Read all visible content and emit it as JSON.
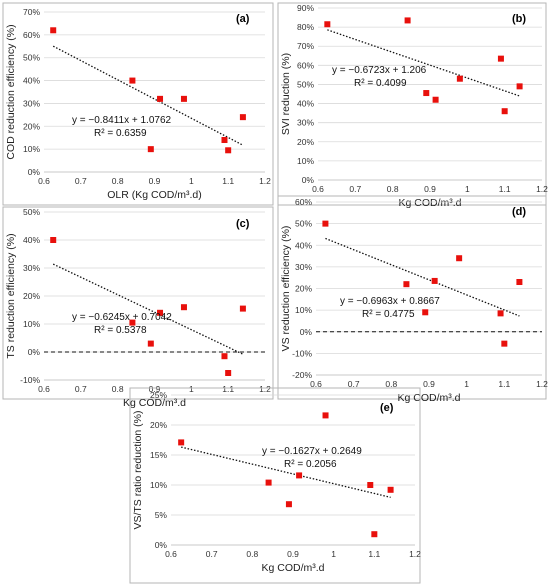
{
  "colors": {
    "marker": "#e8100c",
    "trendline": "#111111",
    "grid": "#d9d9d9",
    "frame": "#b5b5b5"
  },
  "chart_data": [
    {
      "panel": "(a)",
      "type": "scatter",
      "xlabel": "OLR (Kg COD/m³.d)",
      "ylabel": "COD reduction efficiency (%)",
      "xlim": [
        0.6,
        1.2
      ],
      "ylim": [
        0,
        0.7
      ],
      "x_ticks": [
        "0.6",
        "0.7",
        "0.8",
        "0.9",
        "1",
        "1.1",
        "1.2"
      ],
      "y_ticks": [
        "0%",
        "10%",
        "20%",
        "30%",
        "40%",
        "50%",
        "60%",
        "70%"
      ],
      "grid": "horizontal",
      "points": [
        {
          "x": 0.625,
          "y": 0.62
        },
        {
          "x": 0.84,
          "y": 0.4
        },
        {
          "x": 0.89,
          "y": 0.1
        },
        {
          "x": 0.915,
          "y": 0.32
        },
        {
          "x": 0.98,
          "y": 0.32
        },
        {
          "x": 1.09,
          "y": 0.14
        },
        {
          "x": 1.1,
          "y": 0.095
        },
        {
          "x": 1.14,
          "y": 0.24
        }
      ],
      "trend": {
        "slope": -0.8411,
        "intercept": 1.0762
      },
      "equation": "y = −0.8411x + 1.0762",
      "r2": "R² = 0.6359",
      "zero_line": false
    },
    {
      "panel": "(b)",
      "type": "scatter",
      "xlabel": "Kg COD/m³.d",
      "ylabel": "SVI reduction (%)",
      "xlim": [
        0.6,
        1.2
      ],
      "ylim": [
        0,
        0.9
      ],
      "x_ticks": [
        "0.6",
        "0.7",
        "0.8",
        "0.9",
        "1",
        "1.1",
        "1.2"
      ],
      "y_ticks": [
        "0%",
        "10%",
        "20%",
        "30%",
        "40%",
        "50%",
        "60%",
        "70%",
        "80%",
        "90%"
      ],
      "grid": "horizontal",
      "points": [
        {
          "x": 0.625,
          "y": 0.815
        },
        {
          "x": 0.84,
          "y": 0.835
        },
        {
          "x": 0.89,
          "y": 0.455
        },
        {
          "x": 0.915,
          "y": 0.42
        },
        {
          "x": 0.98,
          "y": 0.53
        },
        {
          "x": 1.09,
          "y": 0.635
        },
        {
          "x": 1.1,
          "y": 0.36
        },
        {
          "x": 1.14,
          "y": 0.49
        }
      ],
      "trend": {
        "slope": -0.6723,
        "intercept": 1.206
      },
      "equation": "y = −0.6723x + 1.206",
      "r2": "R² = 0.4099",
      "zero_line": false
    },
    {
      "panel": "(c)",
      "type": "scatter",
      "xlabel": "Kg COD/m³.d",
      "ylabel": "TS reduction efficiency (%)",
      "xlim": [
        0.6,
        1.2
      ],
      "ylim": [
        -0.1,
        0.5
      ],
      "x_ticks": [
        "0.6",
        "0.7",
        "0.8",
        "0.9",
        "1",
        "1.1",
        "1.2"
      ],
      "y_ticks": [
        "-10%",
        "0%",
        "10%",
        "20%",
        "30%",
        "40%",
        "50%"
      ],
      "grid": "horizontal",
      "points": [
        {
          "x": 0.625,
          "y": 0.4
        },
        {
          "x": 0.84,
          "y": 0.105
        },
        {
          "x": 0.89,
          "y": 0.03
        },
        {
          "x": 0.915,
          "y": 0.14
        },
        {
          "x": 0.98,
          "y": 0.16
        },
        {
          "x": 1.09,
          "y": -0.015
        },
        {
          "x": 1.1,
          "y": -0.075
        },
        {
          "x": 1.14,
          "y": 0.155
        }
      ],
      "trend": {
        "slope": -0.6245,
        "intercept": 0.7042
      },
      "equation": "y = −0.6245x + 0.7042",
      "r2": "R² = 0.5378",
      "zero_line": true
    },
    {
      "panel": "(d)",
      "type": "scatter",
      "xlabel": "Kg COD/m³.d",
      "ylabel": "VS reduction efficiency (%)",
      "xlim": [
        0.6,
        1.2
      ],
      "ylim": [
        -0.2,
        0.6
      ],
      "x_ticks": [
        "0.6",
        "0.7",
        "0.8",
        "0.9",
        "1",
        "1.1",
        "1.2"
      ],
      "y_ticks": [
        "-20%",
        "-10%",
        "0%",
        "10%",
        "20%",
        "30%",
        "40%",
        "50%",
        "60%"
      ],
      "grid": "horizontal",
      "points": [
        {
          "x": 0.625,
          "y": 0.5
        },
        {
          "x": 0.84,
          "y": 0.22
        },
        {
          "x": 0.89,
          "y": 0.09
        },
        {
          "x": 0.915,
          "y": 0.235
        },
        {
          "x": 0.98,
          "y": 0.34
        },
        {
          "x": 1.09,
          "y": 0.085
        },
        {
          "x": 1.1,
          "y": -0.055
        },
        {
          "x": 1.14,
          "y": 0.23
        }
      ],
      "trend": {
        "slope": -0.6963,
        "intercept": 0.8667
      },
      "equation": "y = −0.6963x + 0.8667",
      "r2": "R² = 0.4775",
      "zero_line": true
    },
    {
      "panel": "(e)",
      "type": "scatter",
      "xlabel": "Kg COD/m³.d",
      "ylabel": "VS/TS ratio reduction (%)",
      "xlim": [
        0.6,
        1.2
      ],
      "ylim": [
        0,
        0.25
      ],
      "x_ticks": [
        "0.6",
        "0.7",
        "0.8",
        "0.9",
        "1",
        "1.1",
        "1.2"
      ],
      "y_ticks": [
        "0%",
        "5%",
        "10%",
        "15%",
        "20%",
        "25%"
      ],
      "grid": "horizontal",
      "points": [
        {
          "x": 0.625,
          "y": 0.171
        },
        {
          "x": 0.84,
          "y": 0.104
        },
        {
          "x": 0.89,
          "y": 0.068
        },
        {
          "x": 0.915,
          "y": 0.116
        },
        {
          "x": 0.98,
          "y": 0.216
        },
        {
          "x": 1.09,
          "y": 0.1
        },
        {
          "x": 1.1,
          "y": 0.018
        },
        {
          "x": 1.14,
          "y": 0.092
        }
      ],
      "trend": {
        "slope": -0.1627,
        "intercept": 0.2649
      },
      "equation": "y = −0.1627x + 0.2649",
      "r2": "R² = 0.2056",
      "zero_line": false
    }
  ]
}
